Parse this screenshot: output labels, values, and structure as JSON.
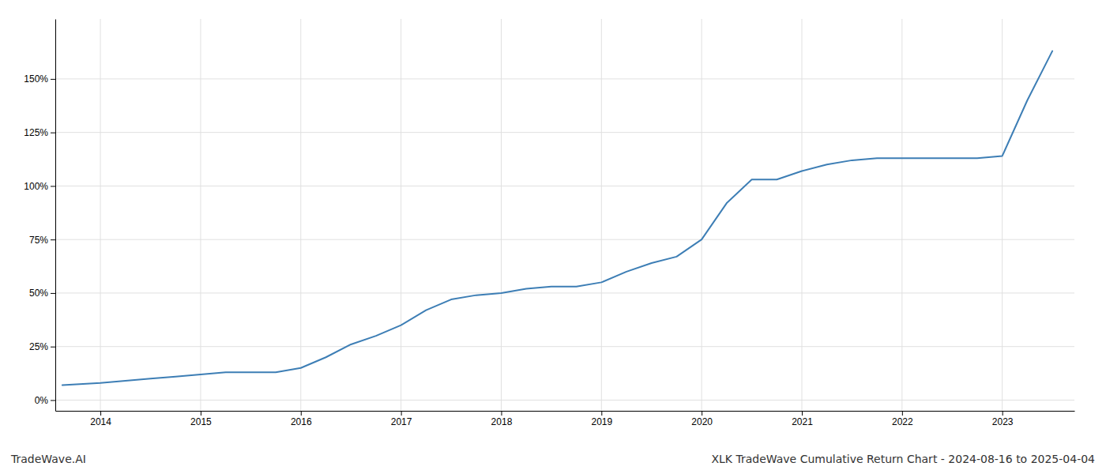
{
  "chart_data": {
    "type": "line",
    "title": "XLK TradeWave Cumulative Return Chart - 2024-08-16 to 2025-04-04",
    "annotations": [
      "TradeWave.AI"
    ],
    "color": "#3d7eb5",
    "x": [
      2013.62,
      2014.0,
      2014.25,
      2014.5,
      2014.75,
      2015.0,
      2015.25,
      2015.5,
      2015.75,
      2016.0,
      2016.25,
      2016.5,
      2016.75,
      2017.0,
      2017.25,
      2017.5,
      2017.75,
      2018.0,
      2018.25,
      2018.5,
      2018.75,
      2019.0,
      2019.25,
      2019.5,
      2019.75,
      2020.0,
      2020.25,
      2020.5,
      2020.75,
      2021.0,
      2021.25,
      2021.5,
      2021.75,
      2022.0,
      2022.25,
      2022.5,
      2022.75,
      2023.0,
      2023.25,
      2023.5
    ],
    "values": [
      7,
      8,
      9,
      10,
      11,
      12,
      13,
      13,
      13,
      15,
      20,
      26,
      30,
      35,
      42,
      47,
      49,
      50,
      52,
      53,
      53,
      55,
      60,
      64,
      67,
      75,
      92,
      103,
      103,
      107,
      110,
      112,
      113,
      113,
      113,
      113,
      113,
      114,
      140,
      163
    ],
    "xlim": [
      2013.55,
      2023.72
    ],
    "xticks": [
      2014,
      2015,
      2016,
      2017,
      2018,
      2019,
      2020,
      2021,
      2022,
      2023
    ],
    "ylim": [
      -5,
      178
    ],
    "yticks": [
      {
        "value": 0,
        "label": "0%"
      },
      {
        "value": 25,
        "label": "25%"
      },
      {
        "value": 50,
        "label": "50%"
      },
      {
        "value": 75,
        "label": "75%"
      },
      {
        "value": 100,
        "label": "100%"
      },
      {
        "value": 125,
        "label": "125%"
      },
      {
        "value": 150,
        "label": "150%"
      }
    ],
    "grid": true
  }
}
